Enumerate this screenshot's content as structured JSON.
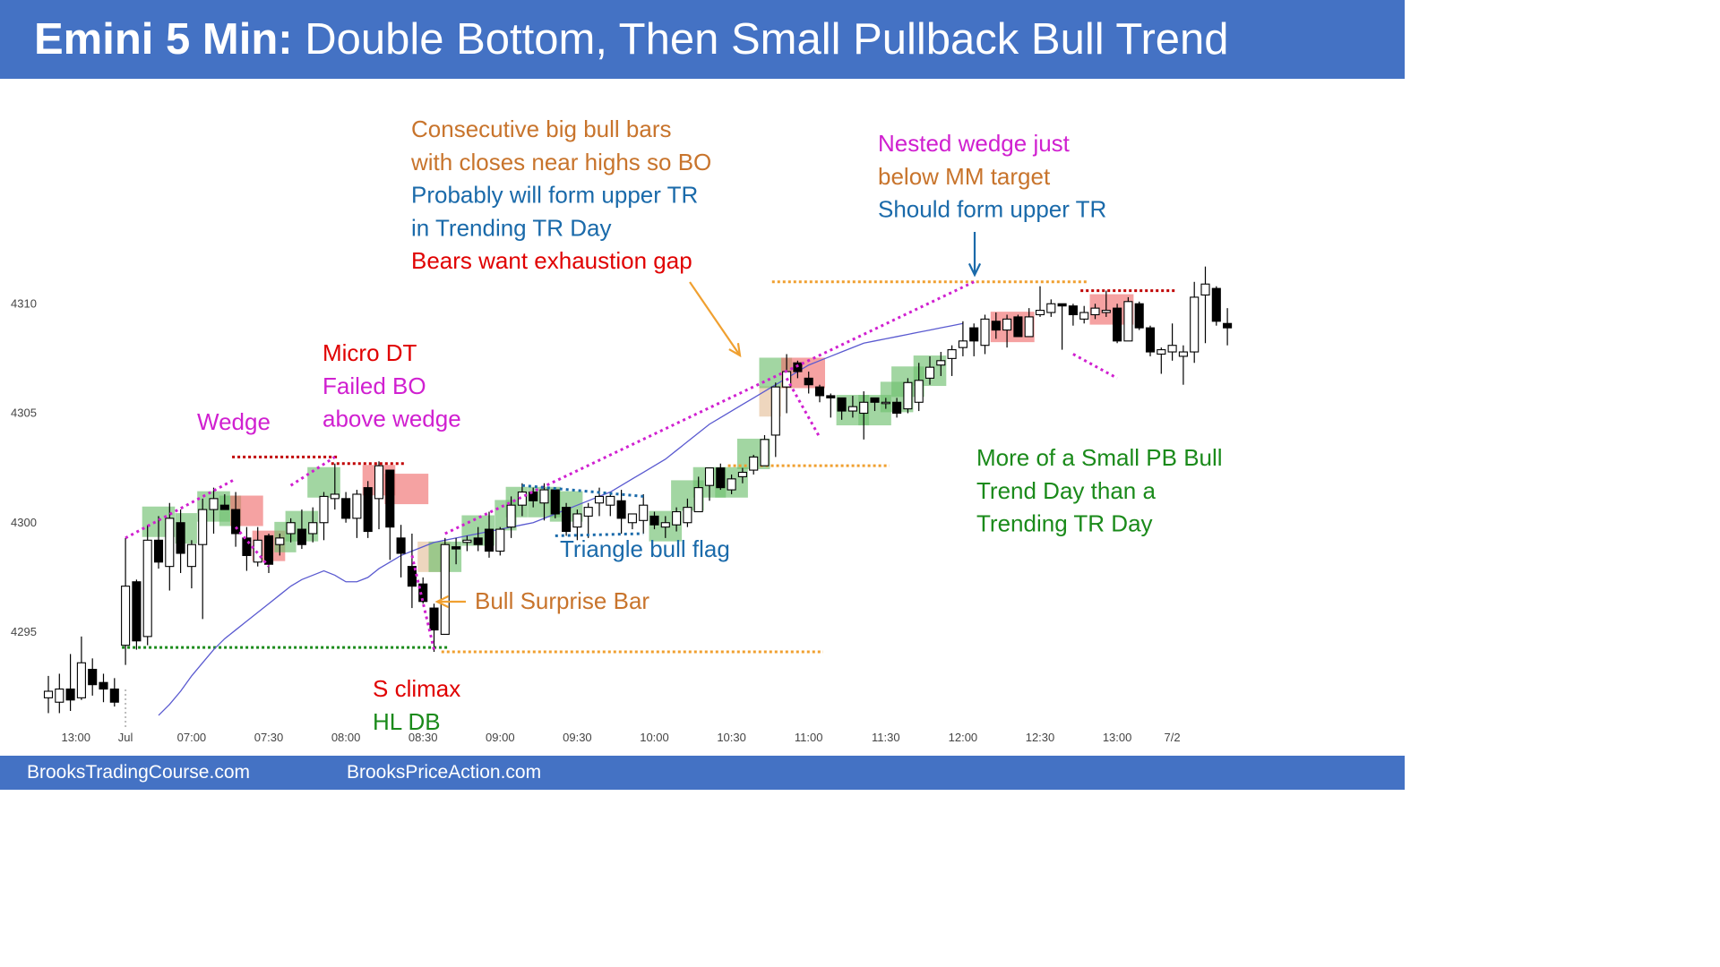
{
  "title": {
    "bold": "Emini 5 Min:",
    "rest": " Double Bottom, Then Small Pullback Bull Trend"
  },
  "footer": {
    "left": "BrooksTradingCourse.com",
    "right": "BrooksPriceAction.com"
  },
  "colors": {
    "brand_blue": "#4472c4",
    "bull_green": "#70c070",
    "bear_red": "#f07070",
    "surprise_tan": "#e8c8a8",
    "ema": "#5a5ad0"
  },
  "chart_data": {
    "type": "candlestick",
    "title": "",
    "ylim": [
      4290.8,
      4313
    ],
    "y_ticks": [
      4295,
      4300,
      4305,
      4310
    ],
    "x_ticks": [
      "13:00",
      "Jul",
      "07:00",
      "07:30",
      "08:00",
      "08:30",
      "09:00",
      "09:30",
      "10:00",
      "10:30",
      "11:00",
      "11:30",
      "12:00",
      "12:30",
      "13:00",
      "7/2"
    ],
    "bar_ohlc": [
      [
        4292.0,
        4293.0,
        4291.3,
        4292.3
      ],
      [
        4291.8,
        4293.1,
        4291.3,
        4292.4
      ],
      [
        4292.4,
        4294.0,
        4291.4,
        4291.9
      ],
      [
        4292.0,
        4294.8,
        4291.9,
        4293.6
      ],
      [
        4293.3,
        4293.8,
        4292.1,
        4292.6
      ],
      [
        4292.7,
        4293.1,
        4291.8,
        4292.4
      ],
      [
        4292.4,
        4292.9,
        4291.6,
        4291.8
      ],
      [
        4294.4,
        4299.3,
        4293.5,
        4297.1
      ],
      [
        4297.3,
        4297.4,
        4294.2,
        4294.6
      ],
      [
        4294.8,
        4299.9,
        4294.4,
        4299.2
      ],
      [
        4299.2,
        4300.3,
        4297.9,
        4298.2
      ],
      [
        4298.0,
        4300.9,
        4296.9,
        4300.2
      ],
      [
        4300.0,
        4300.6,
        4297.7,
        4298.6
      ],
      [
        4298.0,
        4299.2,
        4297.0,
        4299.0
      ],
      [
        4299.0,
        4301.1,
        4295.6,
        4300.6
      ],
      [
        4300.6,
        4301.6,
        4299.5,
        4301.1
      ],
      [
        4300.8,
        4301.3,
        4300.6,
        4300.6
      ],
      [
        4300.6,
        4301.4,
        4298.9,
        4299.5
      ],
      [
        4299.3,
        4299.8,
        4297.8,
        4298.5
      ],
      [
        4298.2,
        4299.8,
        4298.0,
        4299.2
      ],
      [
        4299.4,
        4299.5,
        4297.7,
        4298.1
      ],
      [
        4299.0,
        4299.5,
        4298.5,
        4299.3
      ],
      [
        4299.5,
        4300.2,
        4299.1,
        4300.0
      ],
      [
        4299.7,
        4300.6,
        4298.8,
        4299.0
      ],
      [
        4299.5,
        4300.7,
        4299.1,
        4300.0
      ],
      [
        4300.0,
        4301.4,
        4299.2,
        4301.2
      ],
      [
        4301.1,
        4302.7,
        4300.6,
        4301.3
      ],
      [
        4301.1,
        4301.4,
        4300.0,
        4300.2
      ],
      [
        4300.2,
        4301.5,
        4299.3,
        4301.3
      ],
      [
        4301.6,
        4301.9,
        4299.3,
        4299.6
      ],
      [
        4301.1,
        4302.8,
        4299.7,
        4302.6
      ],
      [
        4302.4,
        4302.4,
        4298.3,
        4299.8
      ],
      [
        4299.3,
        4299.9,
        4297.5,
        4298.6
      ],
      [
        4298.0,
        4299.5,
        4296.1,
        4297.1
      ],
      [
        4297.2,
        4297.5,
        4296.3,
        4296.4
      ],
      [
        4296.1,
        4296.3,
        4294.1,
        4295.1
      ],
      [
        4294.9,
        4299.3,
        4294.9,
        4299.0
      ],
      [
        4298.9,
        4299.3,
        4298.1,
        4298.8
      ],
      [
        4299.1,
        4299.4,
        4298.7,
        4299.2
      ],
      [
        4299.3,
        4299.8,
        4298.7,
        4299.0
      ],
      [
        4299.7,
        4300.5,
        4298.4,
        4298.7
      ],
      [
        4298.7,
        4299.8,
        4298.5,
        4299.7
      ],
      [
        4299.8,
        4301.2,
        4299.3,
        4300.8
      ],
      [
        4300.8,
        4301.8,
        4300.3,
        4301.4
      ],
      [
        4301.4,
        4301.6,
        4300.7,
        4301.0
      ],
      [
        4300.9,
        4301.8,
        4300.1,
        4301.5
      ],
      [
        4301.5,
        4301.6,
        4300.2,
        4300.4
      ],
      [
        4300.7,
        4300.9,
        4299.4,
        4299.6
      ],
      [
        4299.8,
        4300.6,
        4299.2,
        4300.4
      ],
      [
        4300.3,
        4300.9,
        4299.3,
        4300.7
      ],
      [
        4300.9,
        4301.6,
        4300.3,
        4301.2
      ],
      [
        4300.8,
        4301.4,
        4300.3,
        4301.2
      ],
      [
        4301.0,
        4301.5,
        4299.5,
        4300.2
      ],
      [
        4300.0,
        4300.4,
        4299.7,
        4300.4
      ],
      [
        4300.1,
        4301.3,
        4299.5,
        4300.8
      ],
      [
        4300.3,
        4300.5,
        4299.7,
        4299.9
      ],
      [
        4299.8,
        4300.3,
        4299.3,
        4300.0
      ],
      [
        4299.9,
        4300.7,
        4299.6,
        4300.5
      ],
      [
        4300.0,
        4301.1,
        4299.8,
        4300.7
      ],
      [
        4300.5,
        4302.1,
        4300.5,
        4301.6
      ],
      [
        4301.7,
        4302.5,
        4301.0,
        4302.5
      ],
      [
        4302.5,
        4302.7,
        4301.5,
        4301.6
      ],
      [
        4301.5,
        4302.2,
        4301.3,
        4302.0
      ],
      [
        4302.1,
        4302.5,
        4301.8,
        4302.3
      ],
      [
        4302.4,
        4303.1,
        4302.2,
        4303.0
      ],
      [
        4302.6,
        4304.0,
        4302.6,
        4303.8
      ],
      [
        4304.0,
        4306.4,
        4303.0,
        4306.2
      ],
      [
        4306.2,
        4307.7,
        4305.0,
        4306.9
      ],
      [
        4307.3,
        4307.4,
        4306.6,
        4306.9
      ],
      [
        4306.6,
        4306.9,
        4305.9,
        4306.3
      ],
      [
        4306.2,
        4306.3,
        4305.5,
        4305.8
      ],
      [
        4305.8,
        4305.9,
        4304.8,
        4305.7
      ],
      [
        4305.7,
        4305.7,
        4304.7,
        4305.1
      ],
      [
        4305.1,
        4305.8,
        4304.8,
        4305.3
      ],
      [
        4305.0,
        4306.0,
        4303.8,
        4305.5
      ],
      [
        4305.7,
        4305.6,
        4305.1,
        4305.5
      ],
      [
        4305.5,
        4305.7,
        4305.2,
        4305.5
      ],
      [
        4305.5,
        4305.7,
        4304.8,
        4305.0
      ],
      [
        4305.2,
        4306.6,
        4305.0,
        4306.4
      ],
      [
        4305.5,
        4307.3,
        4305.1,
        4306.5
      ],
      [
        4306.6,
        4307.6,
        4306.3,
        4307.1
      ],
      [
        4307.2,
        4307.8,
        4306.7,
        4307.4
      ],
      [
        4307.5,
        4308.1,
        4306.7,
        4307.9
      ],
      [
        4308.0,
        4309.2,
        4307.6,
        4308.3
      ],
      [
        4308.9,
        4309.1,
        4307.6,
        4308.3
      ],
      [
        4308.1,
        4309.5,
        4307.7,
        4309.3
      ],
      [
        4309.2,
        4309.6,
        4308.4,
        4308.8
      ],
      [
        4308.8,
        4309.5,
        4308.0,
        4309.3
      ],
      [
        4309.4,
        4309.5,
        4308.5,
        4308.5
      ],
      [
        4308.5,
        4309.8,
        4308.5,
        4309.4
      ],
      [
        4309.5,
        4310.8,
        4309.4,
        4309.7
      ],
      [
        4309.6,
        4310.2,
        4309.4,
        4310.0
      ],
      [
        4310.0,
        4310.0,
        4307.9,
        4309.9
      ],
      [
        4309.9,
        4310.0,
        4309.0,
        4309.5
      ],
      [
        4309.3,
        4309.9,
        4309.1,
        4309.6
      ],
      [
        4309.5,
        4310.0,
        4309.3,
        4309.8
      ],
      [
        4309.6,
        4310.6,
        4309.4,
        4309.7
      ],
      [
        4309.8,
        4310.0,
        4308.2,
        4308.3
      ],
      [
        4308.3,
        4310.3,
        4308.3,
        4310.1
      ],
      [
        4310.0,
        4310.1,
        4308.8,
        4308.9
      ],
      [
        4308.9,
        4309.0,
        4307.6,
        4307.8
      ],
      [
        4307.7,
        4308.0,
        4306.8,
        4307.9
      ],
      [
        4307.8,
        4309.1,
        4307.4,
        4308.1
      ],
      [
        4307.6,
        4308.1,
        4306.3,
        4307.8
      ],
      [
        4307.8,
        4311.0,
        4307.3,
        4310.3
      ],
      [
        4310.4,
        4311.7,
        4308.2,
        4310.9
      ],
      [
        4310.7,
        4310.8,
        4309.0,
        4309.2
      ],
      [
        4309.1,
        4309.8,
        4308.1,
        4308.9
      ]
    ],
    "ema_20": [
      4291.2,
      4291.7,
      4292.3,
      4293.0,
      4293.6,
      4294.2,
      4294.7,
      4295.1,
      4295.5,
      4295.9,
      4296.3,
      4296.7,
      4297.1,
      4297.4,
      4297.6,
      4297.8,
      4297.6,
      4297.3,
      4297.3,
      4297.5,
      4297.9,
      4298.2,
      4298.5,
      4298.7,
      4298.9,
      4299.1,
      4299.2,
      4299.3,
      4299.4,
      4299.5,
      4299.6,
      4299.7,
      4299.8,
      4299.9,
      4300.0,
      4300.2,
      4300.4,
      4300.6,
      4300.8,
      4301.0,
      4301.2,
      4301.4,
      4301.7,
      4302.0,
      4302.3,
      4302.6,
      4302.9,
      4303.3,
      4303.7,
      4304.1,
      4304.5,
      4304.8,
      4305.1,
      4305.4,
      4305.7,
      4306.0,
      4306.3,
      4306.6,
      4306.9,
      4307.2,
      4307.4,
      4307.6,
      4307.8,
      4308.0,
      4308.2,
      4308.3,
      4308.4,
      4308.5,
      4308.6,
      4308.7,
      4308.8,
      4308.9,
      4309.0,
      4309.1
    ],
    "ema_start_bar": 35,
    "levels": [
      {
        "name": "double-bottom-line",
        "price": 4294.3,
        "from": 7,
        "to": 36,
        "color": "#1a8a1a"
      },
      {
        "name": "wedge-top-line",
        "price": 4303.0,
        "from": 17,
        "to": 26,
        "color": "#c00000"
      },
      {
        "name": "failed-bo-line",
        "price": 4302.7,
        "from": 26,
        "to": 32,
        "color": "#c00000"
      },
      {
        "name": "bull-surprise-low-line",
        "price": 4294.1,
        "from": 36,
        "to": 70,
        "color": "#f0a030"
      },
      {
        "name": "gap-line-low",
        "price": 4302.6,
        "from": 62,
        "to": 76,
        "color": "#f0a030"
      },
      {
        "name": "mm-target-line",
        "price": 4311.0,
        "from": 66,
        "to": 94,
        "color": "#f0a030"
      },
      {
        "name": "twelve-thirty-high-line",
        "price": 4310.6,
        "from": 94,
        "to": 102,
        "color": "#c00000"
      }
    ],
    "annotations": [
      {
        "name": "annotation-wedge",
        "lines": [
          {
            "text": "Wedge",
            "color": "#d020d0"
          }
        ]
      },
      {
        "name": "annotation-micro-dt",
        "lines": [
          {
            "text": "Micro DT",
            "color": "#e00000"
          },
          {
            "text": "Failed BO",
            "color": "#d020d0"
          },
          {
            "text": "above wedge",
            "color": "#d020d0"
          }
        ]
      },
      {
        "name": "annotation-consecutive",
        "lines": [
          {
            "text": "Consecutive big bull bars",
            "color": "#c8742c"
          },
          {
            "text": "with closes near highs so BO",
            "color": "#c8742c"
          },
          {
            "text": "Probably will form upper TR",
            "color": "#1a6aaa"
          },
          {
            "text": "in Trending TR Day",
            "color": "#1a6aaa"
          },
          {
            "text": "Bears want exhaustion gap",
            "color": "#e00000"
          }
        ]
      },
      {
        "name": "annotation-nested-wedge",
        "lines": [
          {
            "text": "Nested wedge just",
            "color": "#d020d0"
          },
          {
            "text": "below MM target",
            "color": "#c8742c"
          },
          {
            "text": "Should form upper TR",
            "color": "#1a6aaa"
          }
        ]
      },
      {
        "name": "annotation-triangle",
        "lines": [
          {
            "text": "Triangle bull flag",
            "color": "#1a6aaa"
          }
        ]
      },
      {
        "name": "annotation-bull-surprise",
        "lines": [
          {
            "text": "Bull Surprise Bar",
            "color": "#c8742c"
          }
        ]
      },
      {
        "name": "annotation-s-climax",
        "lines": [
          {
            "text": "S climax",
            "color": "#e00000"
          },
          {
            "text": "HL DB",
            "color": "#1a8a1a"
          }
        ]
      },
      {
        "name": "annotation-small-pb",
        "lines": [
          {
            "text": "More of a Small PB Bull",
            "color": "#1a8a1a"
          },
          {
            "text": "Trend Day than a",
            "color": "#1a8a1a"
          },
          {
            "text": "Trending TR Day",
            "color": "#1a8a1a"
          }
        ]
      }
    ],
    "grid": false,
    "legend": "none"
  }
}
